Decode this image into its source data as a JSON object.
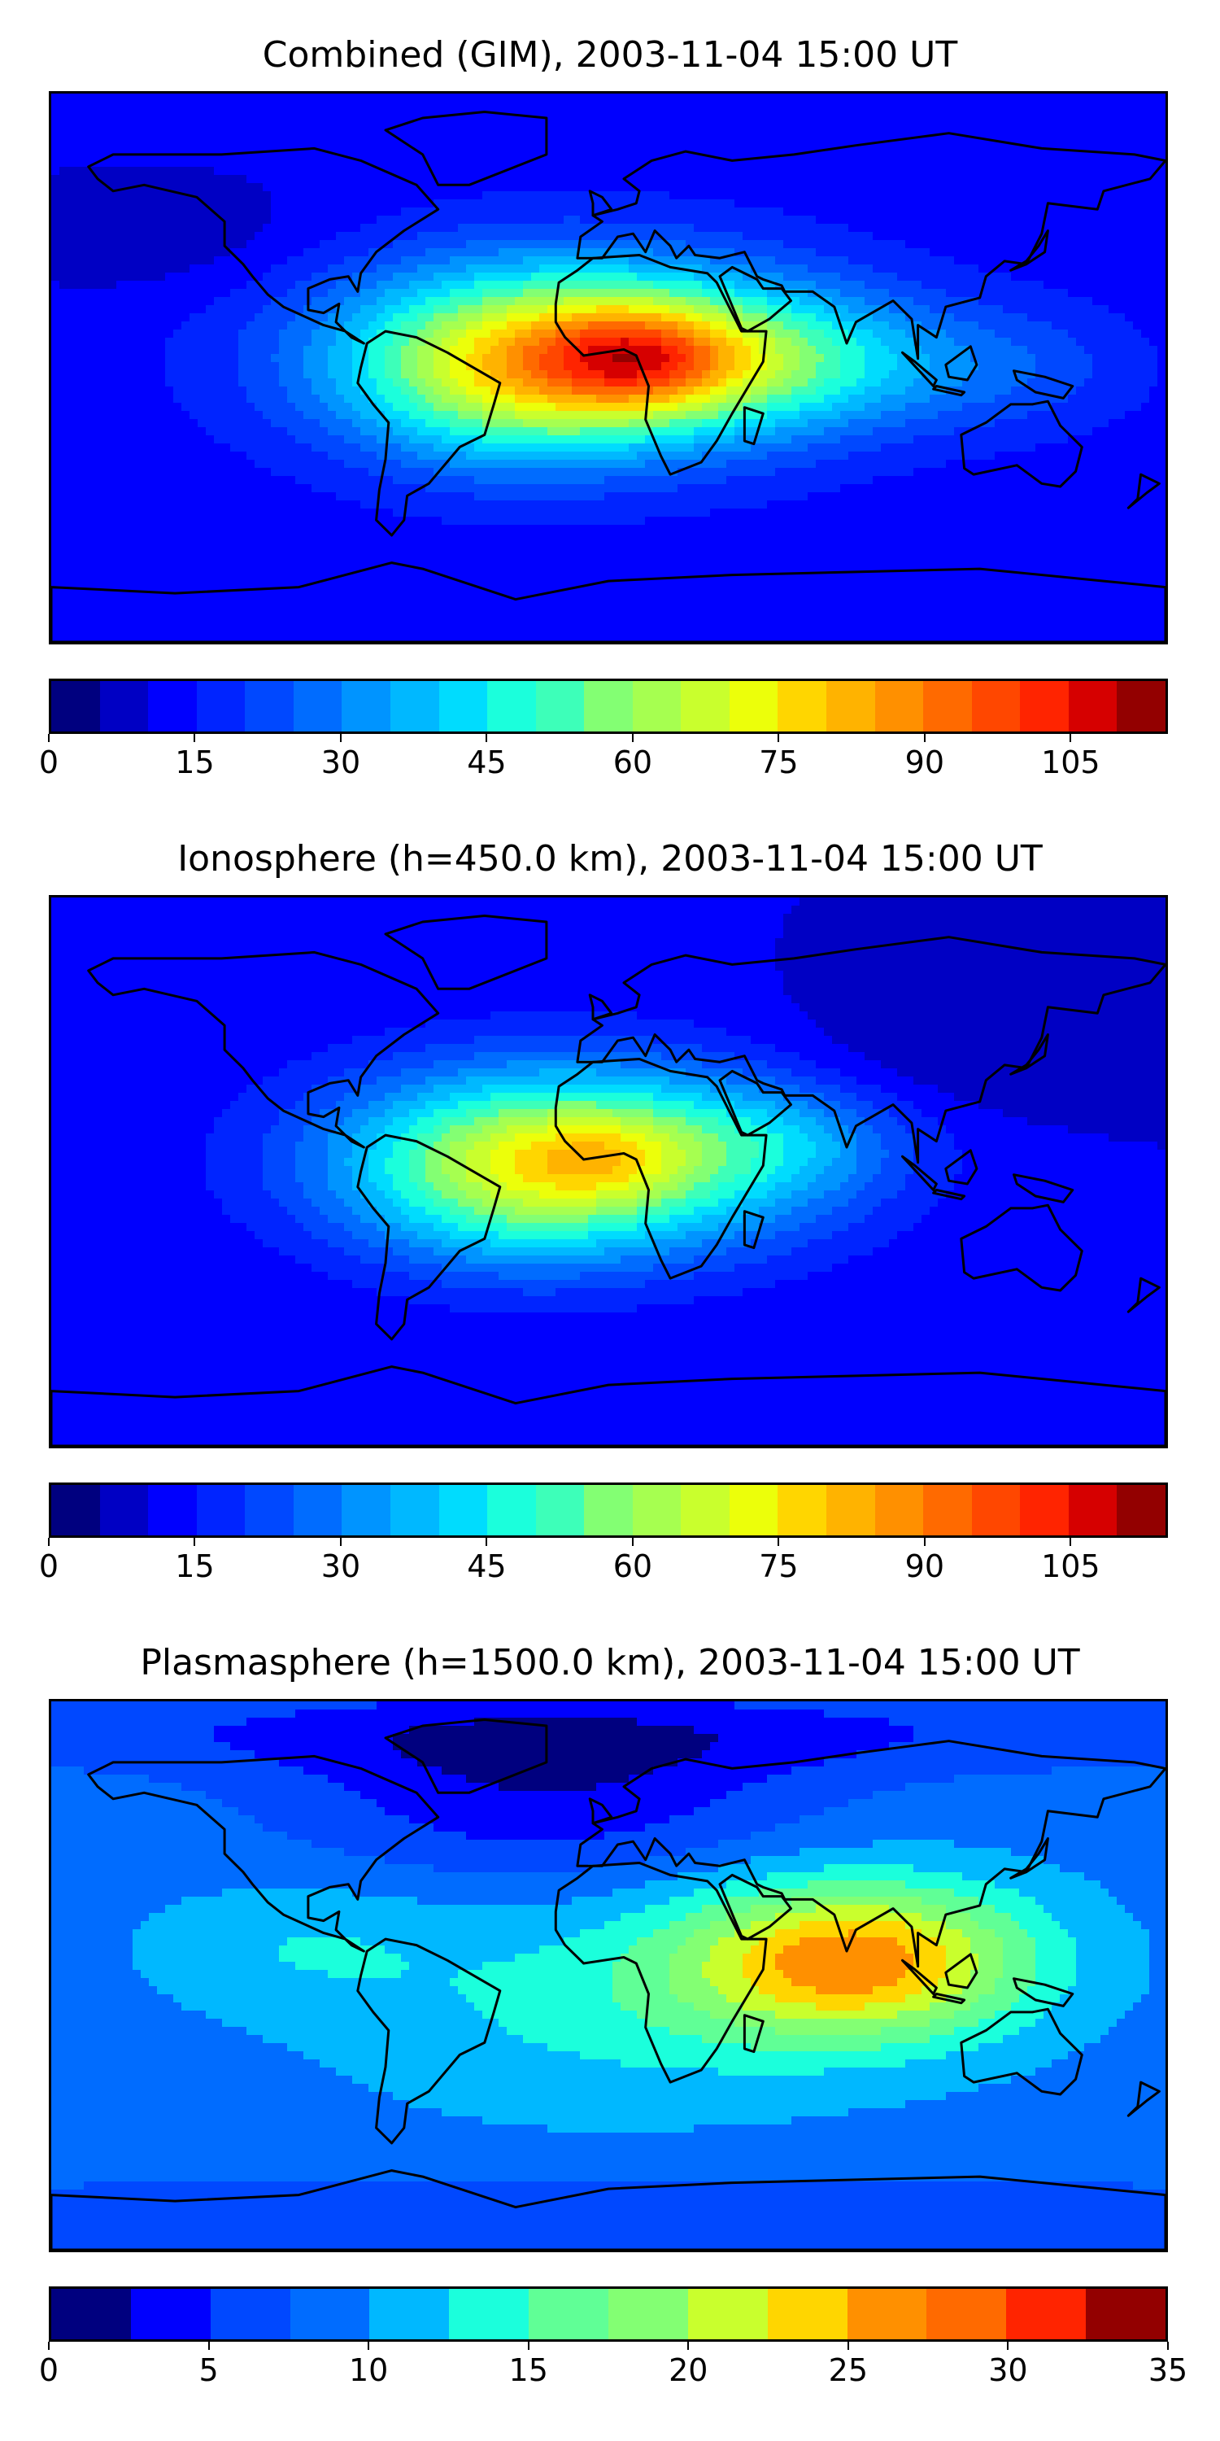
{
  "panels": [
    {
      "title": "Combined (GIM), 2003-11-04 15:00 UT",
      "colorbar": {
        "vmin": 0,
        "vmax": 115,
        "step": 5,
        "ticks": [
          "0",
          "15",
          "30",
          "45",
          "60",
          "75",
          "90",
          "105"
        ],
        "tick_values": [
          0,
          15,
          30,
          45,
          60,
          75,
          90,
          105
        ]
      },
      "field": {
        "background": 12,
        "features": [
          {
            "lon": -10,
            "lat": 4,
            "sx": 55,
            "sy": 22,
            "value": 60
          },
          {
            "lon": 10,
            "lat": 3,
            "sx": 22,
            "sy": 12,
            "value": 30
          },
          {
            "lon": -35,
            "lat": -5,
            "sx": 30,
            "sy": 20,
            "value": 15
          },
          {
            "lon": 60,
            "lat": 2,
            "sx": 35,
            "sy": 15,
            "value": 20
          },
          {
            "lon": 130,
            "lat": 0,
            "sx": 30,
            "sy": 15,
            "value": 10
          },
          {
            "lon": -150,
            "lat": 45,
            "sx": 40,
            "sy": 15,
            "value": -6
          }
        ]
      }
    },
    {
      "title": "Ionosphere  (h=450.0 km), 2003-11-04 15:00 UT",
      "colorbar": {
        "vmin": 0,
        "vmax": 115,
        "step": 5,
        "ticks": [
          "0",
          "15",
          "30",
          "45",
          "60",
          "75",
          "90",
          "105"
        ],
        "tick_values": [
          0,
          15,
          30,
          45,
          60,
          75,
          90,
          105
        ]
      },
      "field": {
        "background": 10,
        "features": [
          {
            "lon": -10,
            "lat": 4,
            "sx": 55,
            "sy": 22,
            "value": 55
          },
          {
            "lon": 0,
            "lat": 5,
            "sx": 18,
            "sy": 10,
            "value": 12
          },
          {
            "lon": -35,
            "lat": -5,
            "sx": 30,
            "sy": 20,
            "value": 12
          },
          {
            "lon": 60,
            "lat": 10,
            "sx": 25,
            "sy": 12,
            "value": 10
          },
          {
            "lon": 110,
            "lat": 40,
            "sx": 40,
            "sy": 15,
            "value": -6
          }
        ]
      }
    },
    {
      "title": "Plasmasphere (h=1500.0 km), 2003-11-04 15:00 UT",
      "colorbar": {
        "vmin": 0,
        "vmax": 35,
        "step": 2.5,
        "ticks": [
          "0",
          "5",
          "10",
          "15",
          "20",
          "25",
          "30",
          "35"
        ],
        "tick_values": [
          0,
          5,
          10,
          15,
          20,
          25,
          30,
          35
        ]
      },
      "field": {
        "background": 9,
        "features": [
          {
            "lon": 80,
            "lat": 5,
            "sx": 40,
            "sy": 18,
            "value": 17
          },
          {
            "lon": 0,
            "lat": -10,
            "sx": 60,
            "sy": 25,
            "value": 4
          },
          {
            "lon": -100,
            "lat": 10,
            "sx": 35,
            "sy": 15,
            "value": 3
          },
          {
            "lon": -20,
            "lat": 60,
            "sx": 60,
            "sy": 20,
            "value": -6
          },
          {
            "lon": 0,
            "lat": 80,
            "sx": 200,
            "sy": 10,
            "value": -4
          },
          {
            "lon": 0,
            "lat": -80,
            "sx": 200,
            "sy": 10,
            "value": -4
          }
        ]
      }
    }
  ],
  "colormap": [
    "#00007f",
    "#0000c4",
    "#0000fe",
    "#0024ff",
    "#0048ff",
    "#006cff",
    "#0094ff",
    "#00b8ff",
    "#00dcfe",
    "#1bffdc",
    "#3dffb9",
    "#60ff96",
    "#83ff73",
    "#a6ff50",
    "#c9ff2d",
    "#ecff0a",
    "#ffd600",
    "#ffb300",
    "#ff9000",
    "#ff6a00",
    "#ff4700",
    "#ff2400",
    "#d60000",
    "#930000"
  ],
  "coastline_color": "#000000"
}
